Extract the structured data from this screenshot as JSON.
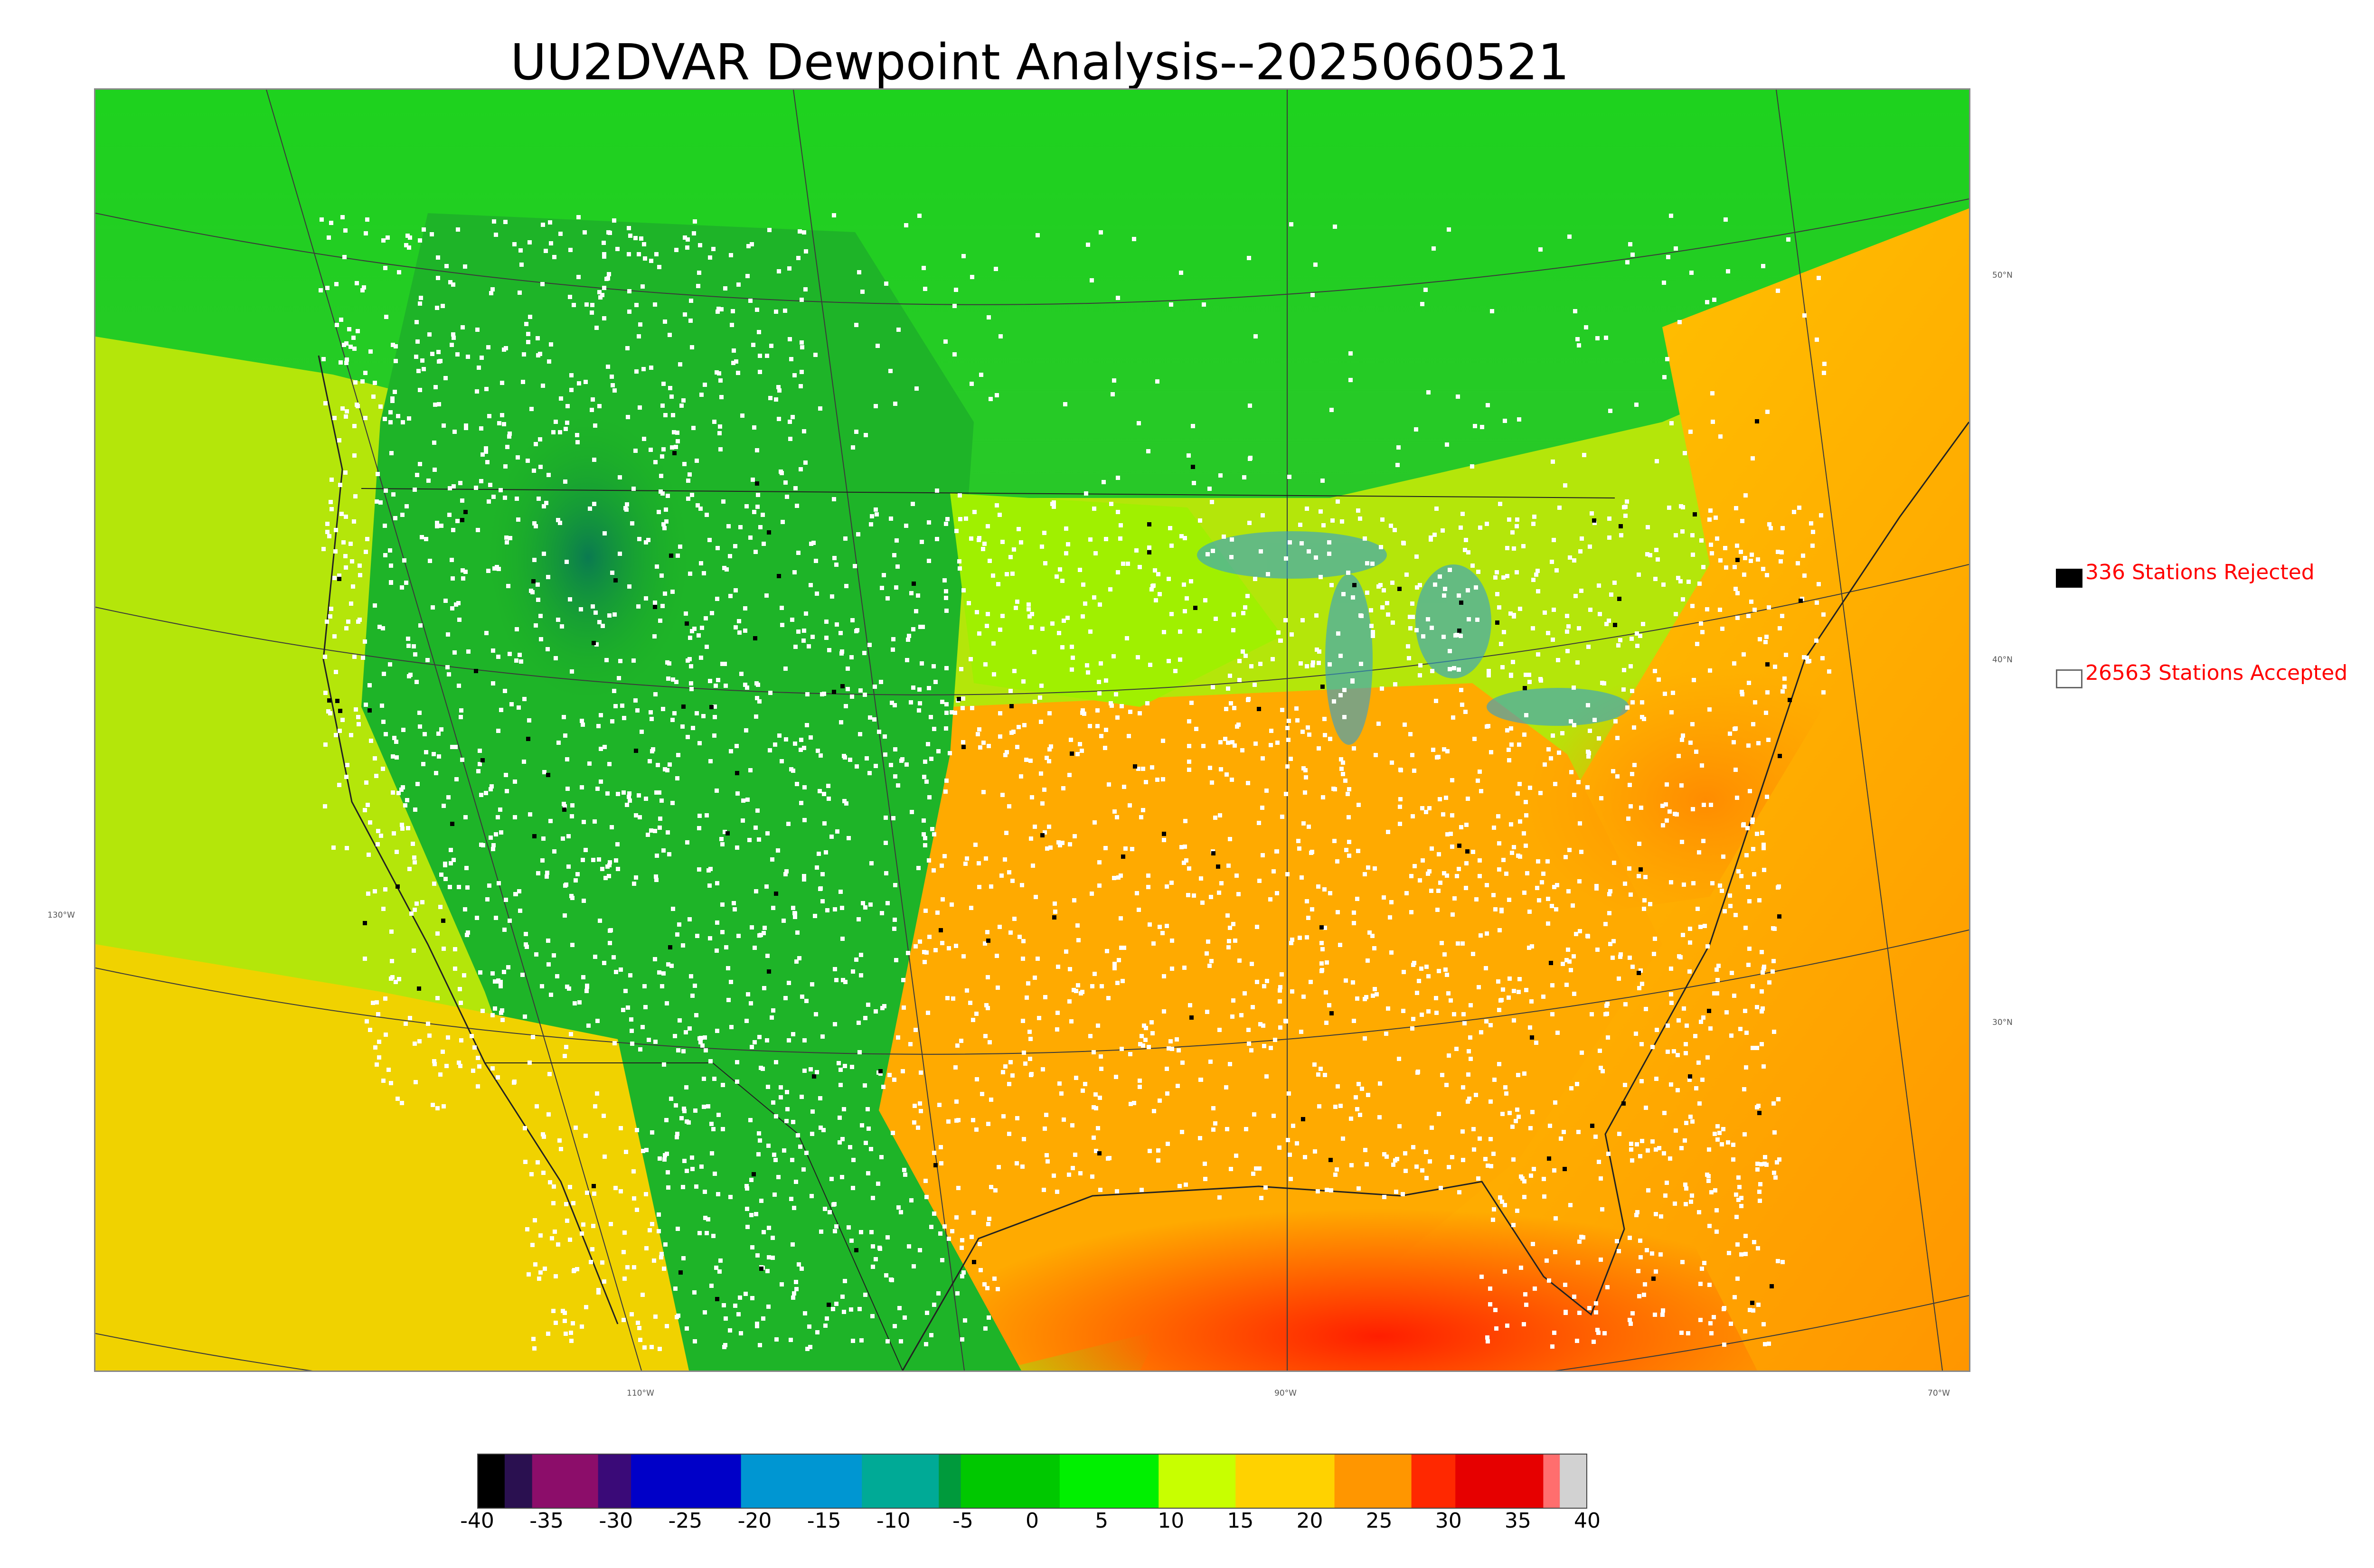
{
  "title": "UU2DVAR Dewpoint Analysis--2025060521",
  "graticule": {
    "lon_labels": [
      "110°W",
      "90°W",
      "70°W"
    ],
    "lat_labels": [
      "50°N",
      "40°N",
      "30°N"
    ],
    "left_label": "130°W"
  },
  "legend": {
    "rejected_text": "336 Stations Rejected",
    "accepted_text": "26563 Stations Accepted",
    "rejected_swatch": "#000000",
    "accepted_swatch": "#ffffff",
    "text_color": "#ff0000"
  },
  "colorbar": {
    "tick_labels": [
      "-40",
      "-35",
      "-30",
      "-25",
      "-20",
      "-15",
      "-10",
      "-5",
      "0",
      "5",
      "10",
      "15",
      "20",
      "25",
      "30",
      "35",
      "40"
    ],
    "range": [
      -40,
      40
    ],
    "colors": [
      "#000000",
      "#2a1050",
      "#8c0d6a",
      "#3a0a78",
      "#0000c8",
      "#0096d2",
      "#00aa96",
      "#009a3c",
      "#00c800",
      "#00f000",
      "#c8ff00",
      "#ffd200",
      "#ff9600",
      "#ff2800",
      "#e60000",
      "#ff6e6e",
      "#d2d2d2"
    ]
  },
  "map": {
    "field": "dewpoint",
    "ocean_west_color": "#b4e60a",
    "gulf_color": "#ff3c00",
    "atlantic_color": "#ffa000",
    "north_color": "#1ec81e",
    "rockies_color": "#0a8c3c"
  }
}
